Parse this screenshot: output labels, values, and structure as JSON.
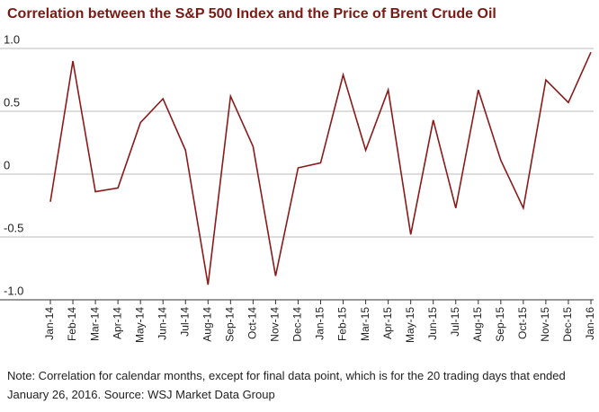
{
  "chart_data": {
    "type": "line",
    "title": "Correlation between the S&P 500 Index and the Price of Brent Crude Oil",
    "categories": [
      "Jan-14",
      "Feb-14",
      "Mar-14",
      "Apr-14",
      "May-14",
      "Jun-14",
      "Jul-14",
      "Aug-14",
      "Sep-14",
      "Oct-14",
      "Nov-14",
      "Dec-14",
      "Jan-15",
      "Feb-15",
      "Mar-15",
      "Apr-15",
      "May-15",
      "Jun-15",
      "Jul-15",
      "Aug-15",
      "Sep-15",
      "Oct-15",
      "Nov-15",
      "Dec-15",
      "Jan-16"
    ],
    "values": [
      -0.22,
      0.9,
      -0.14,
      -0.11,
      0.41,
      0.6,
      0.19,
      -0.88,
      0.62,
      0.22,
      -0.81,
      0.05,
      0.09,
      0.79,
      0.19,
      0.67,
      -0.48,
      0.43,
      -0.27,
      0.67,
      0.11,
      -0.27,
      0.75,
      0.57,
      0.97
    ],
    "color": "#8b1a1a",
    "ylim": [
      -1,
      1
    ],
    "yticks": [
      {
        "value": 1,
        "label": "1.0"
      },
      0.5,
      0,
      -0.5,
      {
        "value": -1,
        "label": "-1.0"
      }
    ],
    "grid": true,
    "note": "Note: Correlation for calendar months, except for final data point, which is for the 20 trading days that ended January 26, 2016. Source: WSJ Market Data Group"
  }
}
